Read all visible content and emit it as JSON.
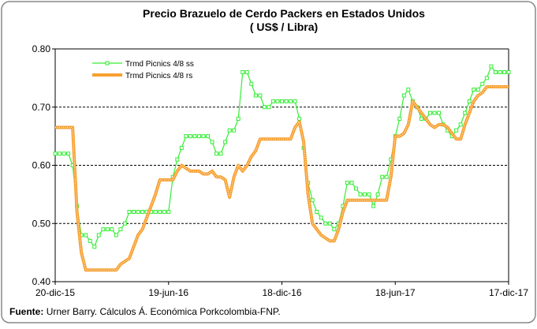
{
  "chart_data": {
    "type": "line",
    "title": "Precio Brazuelo de Cerdo Packers en Estados Unidos",
    "subtitle": "( US$ / Libra)",
    "source_label": "Fuente:",
    "source": "Urner Barry. Cálculos Á. Económica Porkcolombia-FNP.",
    "categories": [
      "20-dic-15",
      null,
      null,
      null,
      null,
      null,
      null,
      null,
      null,
      null,
      null,
      null,
      null,
      null,
      null,
      null,
      null,
      null,
      null,
      null,
      null,
      null,
      null,
      null,
      null,
      null,
      "19-jun-16",
      null,
      null,
      null,
      null,
      null,
      null,
      null,
      null,
      null,
      null,
      null,
      null,
      null,
      null,
      null,
      null,
      null,
      null,
      null,
      null,
      null,
      null,
      null,
      null,
      null,
      "18-dic-16",
      null,
      null,
      null,
      null,
      null,
      null,
      null,
      null,
      null,
      null,
      null,
      null,
      null,
      null,
      null,
      null,
      null,
      null,
      null,
      null,
      null,
      null,
      null,
      null,
      null,
      "18-jun-17",
      null,
      null,
      null,
      null,
      null,
      null,
      null,
      null,
      null,
      null,
      null,
      null,
      null,
      null,
      null,
      null,
      null,
      null,
      null,
      null,
      null,
      null,
      null,
      null,
      null,
      "17-dic-17"
    ],
    "series": [
      {
        "name": "Trmd Picnics 4/8 ss",
        "color": "#33ee33",
        "marker": true,
        "values": [
          0.62,
          0.62,
          0.62,
          0.62,
          0.6,
          0.53,
          0.48,
          0.48,
          0.47,
          0.46,
          0.48,
          0.49,
          0.49,
          0.49,
          0.48,
          0.49,
          0.5,
          0.52,
          0.52,
          0.52,
          0.52,
          0.52,
          0.52,
          0.52,
          0.52,
          0.52,
          0.52,
          0.58,
          0.61,
          0.63,
          0.65,
          0.65,
          0.65,
          0.65,
          0.65,
          0.65,
          0.64,
          0.62,
          0.62,
          0.64,
          0.66,
          0.66,
          0.68,
          0.76,
          0.76,
          0.74,
          0.72,
          0.72,
          0.7,
          0.7,
          0.71,
          0.71,
          0.71,
          0.71,
          0.71,
          0.71,
          0.68,
          0.63,
          0.57,
          0.54,
          0.52,
          0.51,
          0.5,
          0.5,
          0.49,
          0.5,
          0.53,
          0.57,
          0.57,
          0.56,
          0.55,
          0.55,
          0.55,
          0.53,
          0.55,
          0.58,
          0.58,
          0.61,
          0.65,
          0.68,
          0.72,
          0.73,
          0.71,
          0.7,
          0.68,
          0.68,
          0.69,
          0.69,
          0.69,
          0.67,
          0.66,
          0.65,
          0.66,
          0.67,
          0.69,
          0.71,
          0.73,
          0.73,
          0.74,
          0.75,
          0.77,
          0.76,
          0.76,
          0.76,
          0.76
        ]
      },
      {
        "name": "Trmd Picnics 4/8 rs",
        "color": "#f7a030",
        "marker": false,
        "values": [
          0.665,
          0.665,
          0.665,
          0.665,
          0.665,
          0.52,
          0.45,
          0.42,
          0.42,
          0.42,
          0.42,
          0.42,
          0.42,
          0.42,
          0.42,
          0.43,
          0.435,
          0.44,
          0.46,
          0.48,
          0.49,
          0.51,
          0.53,
          0.55,
          0.575,
          0.575,
          0.575,
          0.575,
          0.59,
          0.6,
          0.595,
          0.59,
          0.59,
          0.59,
          0.585,
          0.585,
          0.59,
          0.58,
          0.58,
          0.575,
          0.545,
          0.58,
          0.6,
          0.59,
          0.6,
          0.615,
          0.625,
          0.645,
          0.645,
          0.645,
          0.645,
          0.645,
          0.645,
          0.645,
          0.645,
          0.665,
          0.675,
          0.64,
          0.55,
          0.5,
          0.49,
          0.48,
          0.475,
          0.47,
          0.47,
          0.49,
          0.52,
          0.54,
          0.54,
          0.54,
          0.54,
          0.54,
          0.54,
          0.54,
          0.54,
          0.54,
          0.54,
          0.58,
          0.65,
          0.65,
          0.655,
          0.67,
          0.71,
          0.7,
          0.69,
          0.68,
          0.67,
          0.665,
          0.67,
          0.67,
          0.665,
          0.655,
          0.645,
          0.645,
          0.67,
          0.69,
          0.71,
          0.72,
          0.725,
          0.735,
          0.735,
          0.735,
          0.735,
          0.735,
          0.735
        ]
      }
    ],
    "ylim": [
      0.4,
      0.8
    ],
    "yticks": [
      {
        "value": 0.4,
        "label": "0.40"
      },
      {
        "value": 0.5,
        "label": "0.50"
      },
      {
        "value": 0.6,
        "label": "0.60"
      },
      {
        "value": 0.7,
        "label": "0.70"
      },
      {
        "value": 0.8,
        "label": "0.80"
      }
    ],
    "grid": true,
    "legend": "top-left"
  }
}
